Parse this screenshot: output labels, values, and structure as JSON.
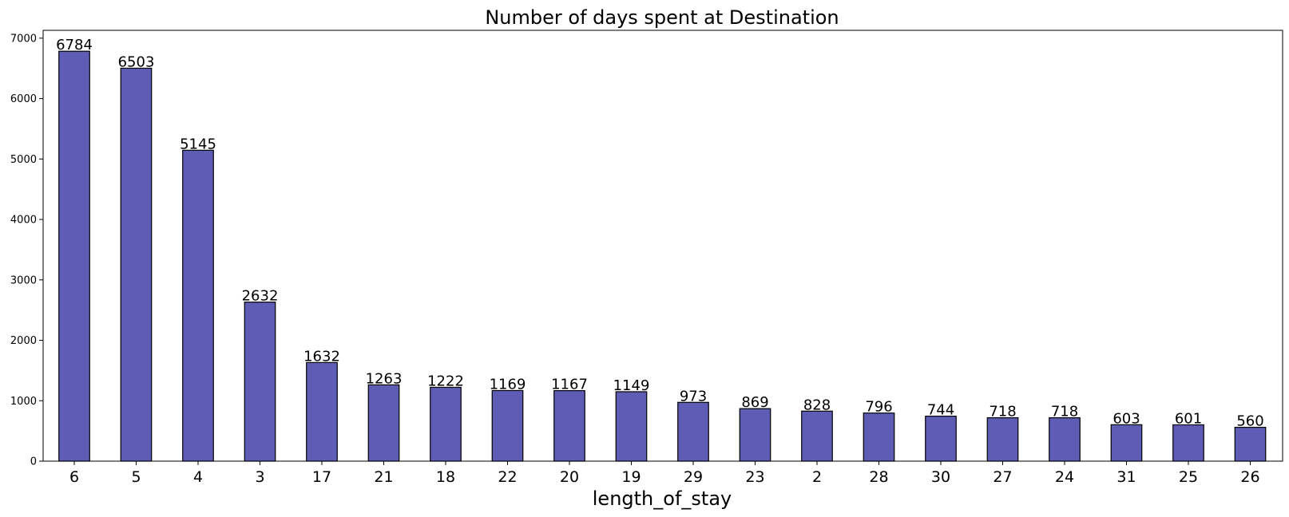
{
  "chart_data": {
    "type": "bar",
    "title": "Number of days spent at Destination",
    "xlabel": "length_of_stay",
    "ylabel": "",
    "categories": [
      "6",
      "5",
      "4",
      "3",
      "17",
      "21",
      "18",
      "22",
      "20",
      "19",
      "29",
      "23",
      "2",
      "28",
      "30",
      "27",
      "24",
      "31",
      "25",
      "26"
    ],
    "values": [
      6784,
      6503,
      5145,
      2632,
      1632,
      1263,
      1222,
      1169,
      1167,
      1149,
      973,
      869,
      828,
      796,
      744,
      718,
      718,
      603,
      601,
      560
    ],
    "ylim": [
      0,
      7130
    ],
    "yticks": [
      0,
      1000,
      2000,
      3000,
      4000,
      5000,
      6000,
      7000
    ],
    "grid": false,
    "legend": "none",
    "bar_color": "#5f5cb6",
    "edge_color": "#000000"
  }
}
